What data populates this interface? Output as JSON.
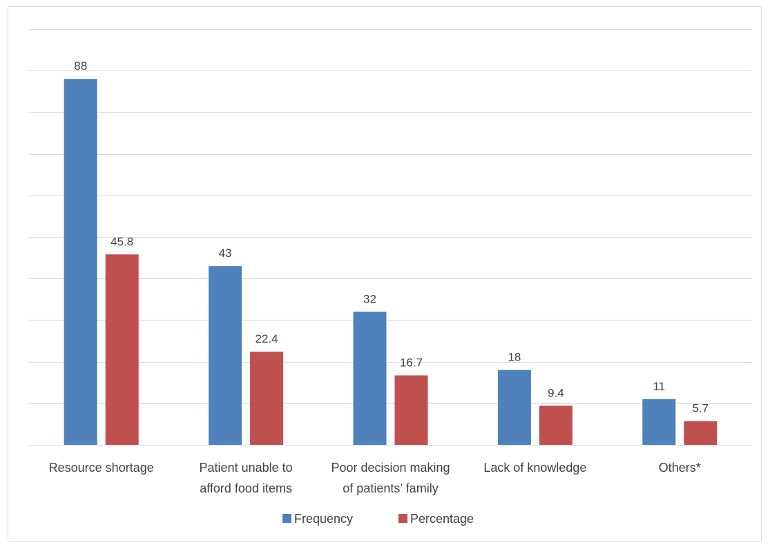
{
  "chart_data": {
    "type": "bar",
    "categories": [
      [
        "Resource shortage"
      ],
      [
        "Patient unable to",
        "afford food items"
      ],
      [
        "Poor decision making",
        "of patients’ family"
      ],
      [
        "Lack of knowledge"
      ],
      [
        "Others*"
      ]
    ],
    "series": [
      {
        "name": "Frequency",
        "values": [
          88,
          43,
          32,
          18,
          11
        ],
        "labels": [
          "88",
          "43",
          "32",
          "18",
          "11"
        ],
        "color": "#4f81bd"
      },
      {
        "name": "Percentage",
        "values": [
          45.8,
          22.4,
          16.7,
          9.4,
          5.7
        ],
        "labels": [
          "45.8",
          "22.4",
          "16.7",
          "9.4",
          "5.7"
        ],
        "color": "#c0504d"
      }
    ],
    "ylim": [
      0,
      100
    ],
    "y_tick_step": 10,
    "grid": true,
    "gridline_color": "#d9d9d9",
    "legend_position": "bottom",
    "title": "",
    "xlabel": "",
    "ylabel": ""
  }
}
